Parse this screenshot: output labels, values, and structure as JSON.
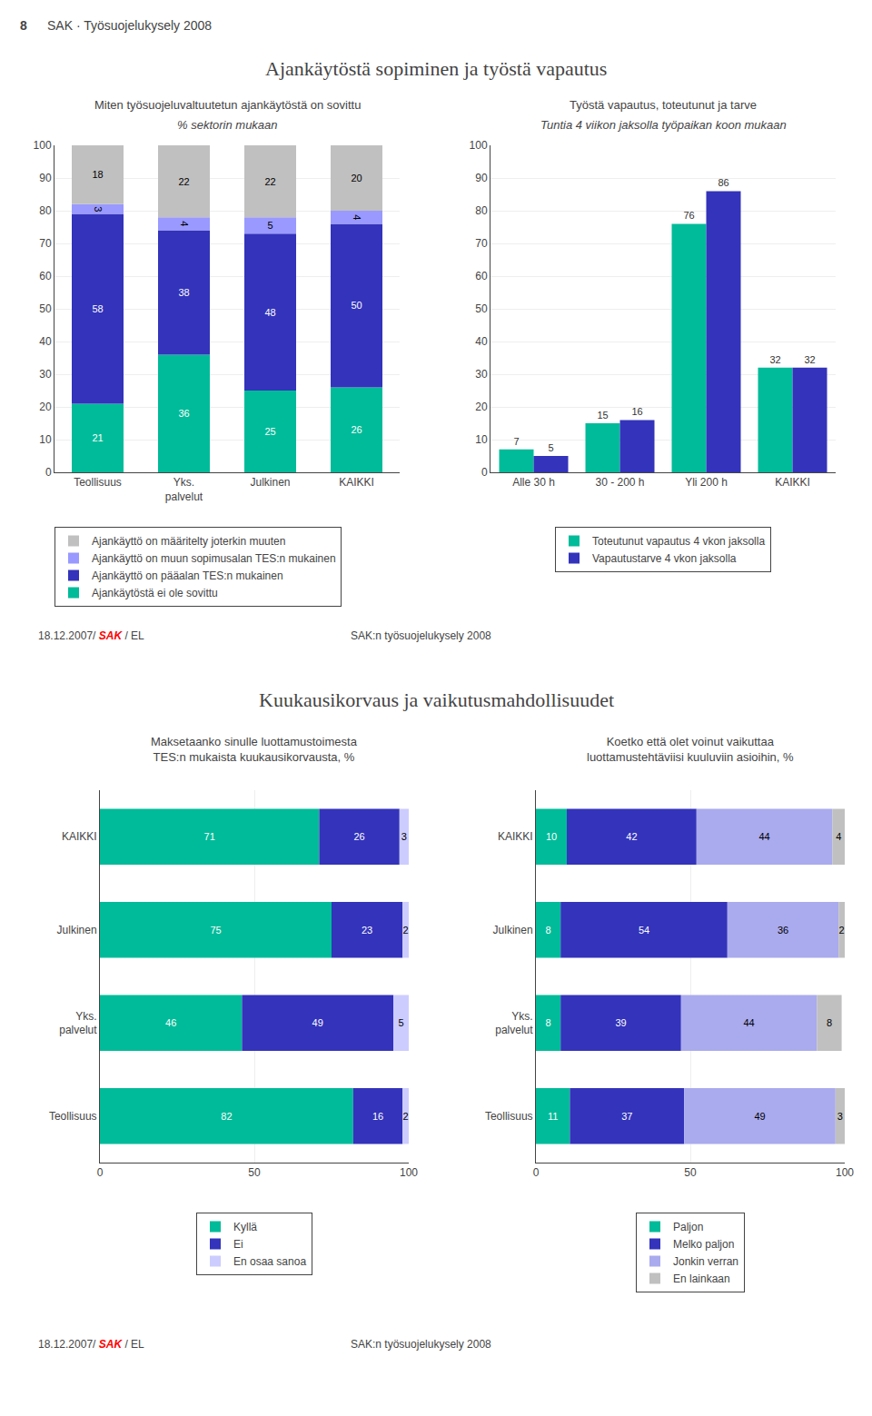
{
  "header": [
    "8",
    "SAK · Työsuojelukysely 2008"
  ],
  "section_titles": [
    "Ajankäytöstä sopiminen ja työstä vapautus",
    "Kuukausikorvaus ja vaikutusmahdollisuudet"
  ],
  "footer": {
    "source": [
      {
        "text": "18.12.2007/ "
      },
      {
        "text": "SAK",
        "color": "red"
      },
      {
        "text": " / EL"
      }
    ],
    "title": "SAK:n työsuojelukysely 2008"
  },
  "chart_data": [
    {
      "type": "bar",
      "title": "Miten työsuojeluvaltuutetun ajankäytöstä on sovittu",
      "subtitle": "% sektorin mukaan",
      "categories": [
        "Teollisuus",
        "Yks.\npalvelut",
        "Julkinen",
        "KAIKKI"
      ],
      "stacked": true,
      "data_labels": true,
      "grid": true,
      "legend": "bottom left",
      "ylim": [
        0,
        100
      ],
      "yticks": [
        0,
        10,
        20,
        30,
        40,
        50,
        60,
        70,
        80,
        90,
        100
      ],
      "series": [
        {
          "name": "Ajankäytöstä ei ole sovittu",
          "color": "#00bb99",
          "values": [
            21,
            36,
            25,
            26
          ]
        },
        {
          "name": "Ajankäyttö on pääalan TES:n mukainen",
          "color": "#3333bb",
          "values": [
            58,
            38,
            48,
            50
          ]
        },
        {
          "name": "Ajankäyttö on muun sopimusalan TES:n mukainen",
          "color": "#9999ff",
          "values": [
            3,
            4,
            5,
            4
          ]
        },
        {
          "name": "Ajankäyttö on määritelty joterkin muuten",
          "color": "#c0c0c0",
          "values": [
            18,
            22,
            22,
            20
          ]
        }
      ]
    },
    {
      "type": "bar",
      "title": "Työstä vapautus, toteutunut ja tarve",
      "subtitle": "Tuntia 4 viikon jaksolla työpaikan koon mukaan",
      "categories": [
        "Alle 30 h",
        "30 - 200 h",
        "Yli 200 h",
        "KAIKKI"
      ],
      "data_labels": true,
      "grid": true,
      "legend": "bottom",
      "ylim": [
        0,
        100
      ],
      "yticks": [
        0,
        10,
        20,
        30,
        40,
        50,
        60,
        70,
        80,
        90,
        100
      ],
      "series": [
        {
          "name": "Toteutunut vapautus 4 vkon jaksolla",
          "color": "#00bb99",
          "values": [
            7,
            15,
            76,
            32
          ]
        },
        {
          "name": "Vapautustarve 4 vkon jaksolla",
          "color": "#3333bb",
          "values": [
            5,
            16,
            86,
            32
          ]
        }
      ]
    },
    {
      "type": "bar",
      "title": "Maksetaanko sinulle luottamustoimesta\nTES:n mukaista kuukausikorvausta, %",
      "categories": [
        "KAIKKI",
        "Julkinen",
        "Yks.\npalvelut",
        "Teollisuus"
      ],
      "orientation": "horizontal",
      "stacked": true,
      "data_labels": true,
      "grid": true,
      "legend": "bottom",
      "xlim": [
        0,
        100
      ],
      "xticks": [
        0,
        50,
        100
      ],
      "series": [
        {
          "name": "Kyllä",
          "color": "#00bb99",
          "values": [
            71,
            75,
            46,
            82
          ]
        },
        {
          "name": "Ei",
          "color": "#3333bb",
          "values": [
            26,
            23,
            49,
            16
          ]
        },
        {
          "name": "En osaa sanoa",
          "color": "#ccccff",
          "values": [
            3,
            2,
            5,
            2
          ]
        }
      ]
    },
    {
      "type": "bar",
      "title": "Koetko että olet voinut vaikuttaa\nluottamustehtäviisi kuuluviin asioihin, %",
      "categories": [
        "KAIKKI",
        "Julkinen",
        "Yks.\npalvelut",
        "Teollisuus"
      ],
      "orientation": "horizontal",
      "stacked": true,
      "data_labels": true,
      "grid": true,
      "legend": "bottom",
      "xlim": [
        0,
        100
      ],
      "xticks": [
        0,
        50,
        100
      ],
      "series": [
        {
          "name": "Paljon",
          "color": "#00bb99",
          "values": [
            10,
            8,
            8,
            11
          ]
        },
        {
          "name": "Melko paljon",
          "color": "#3333bb",
          "values": [
            42,
            54,
            39,
            37
          ]
        },
        {
          "name": "Jonkin verran",
          "color": "#aaaaee",
          "values": [
            44,
            36,
            44,
            49
          ]
        },
        {
          "name": "En lainkaan",
          "color": "#c0c0c0",
          "values": [
            4,
            2,
            8,
            3
          ]
        }
      ]
    }
  ]
}
